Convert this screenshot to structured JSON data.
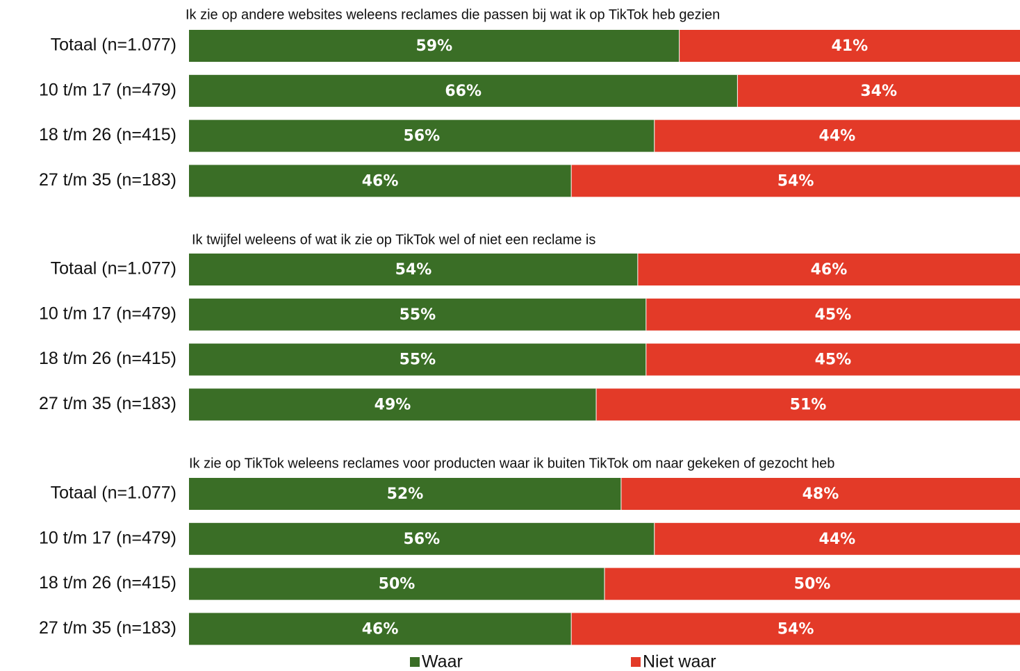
{
  "chart_data": {
    "type": "bar",
    "orientation": "horizontal",
    "stacked": "100%",
    "legend_position": "bottom",
    "grid": false,
    "colors": {
      "Waar": "#3a6e26",
      "Niet waar": "#e33a28"
    },
    "legend": [
      {
        "name": "Waar",
        "color": "#3a6e26"
      },
      {
        "name": "Niet waar",
        "color": "#e33a28"
      }
    ],
    "panels": [
      {
        "title": "Ik zie op andere websites weleens reclames die passen bij wat ik op TikTok heb gezien",
        "categories": [
          "Totaal (n=1.077)",
          "10 t/m 17  (n=479)",
          "18 t/m 26  (n=415)",
          "27 t/m 35  (n=183)"
        ],
        "series": [
          {
            "name": "Waar",
            "values": [
              59,
              66,
              56,
              46
            ],
            "labels": [
              "59%",
              "66%",
              "56%",
              "46%"
            ]
          },
          {
            "name": "Niet waar",
            "values": [
              41,
              34,
              44,
              54
            ],
            "labels": [
              "41%",
              "34%",
              "44%",
              "54%"
            ]
          }
        ]
      },
      {
        "title": "Ik twijfel weleens of wat ik zie op TikTok wel of niet een reclame is",
        "categories": [
          "Totaal (n=1.077)",
          "10 t/m 17  (n=479)",
          "18 t/m 26  (n=415)",
          "27 t/m 35  (n=183)"
        ],
        "series": [
          {
            "name": "Waar",
            "values": [
              54,
              55,
              55,
              49
            ],
            "labels": [
              "54%",
              "55%",
              "55%",
              "49%"
            ]
          },
          {
            "name": "Niet waar",
            "values": [
              46,
              45,
              45,
              51
            ],
            "labels": [
              "46%",
              "45%",
              "45%",
              "51%"
            ]
          }
        ]
      },
      {
        "title": "Ik zie op TikTok weleens reclames voor producten waar ik buiten TikTok om naar gekeken of gezocht heb",
        "categories": [
          "Totaal (n=1.077)",
          "10 t/m 17  (n=479)",
          "18 t/m 26  (n=415)",
          "27 t/m 35  (n=183)"
        ],
        "series": [
          {
            "name": "Waar",
            "values": [
              52,
              56,
              50,
              46
            ],
            "labels": [
              "52%",
              "56%",
              "50%",
              "46%"
            ]
          },
          {
            "name": "Niet waar",
            "values": [
              48,
              44,
              50,
              54
            ],
            "labels": [
              "48%",
              "44%",
              "50%",
              "54%"
            ]
          }
        ]
      }
    ]
  }
}
